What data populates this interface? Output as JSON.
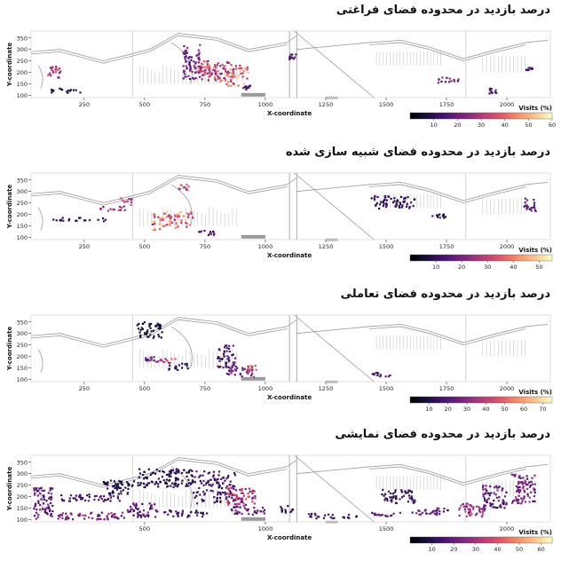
{
  "chart_data": [
    {
      "type": "heatmap",
      "title": "درصد بازدید در محدوده فضای فراغتی",
      "xlabel": "X-coordinate",
      "ylabel": "Y-coordinate",
      "xticks": [
        250,
        500,
        750,
        1000,
        1250,
        1500,
        1750,
        2000
      ],
      "yticks": [
        100,
        150,
        200,
        250,
        300,
        350
      ],
      "xlim": [
        30,
        2180
      ],
      "ylim": [
        90,
        380
      ],
      "colorbar": {
        "label": "Visits (%)",
        "ticks": [
          10,
          20,
          30,
          40,
          50,
          60
        ],
        "range": [
          0,
          60
        ]
      },
      "clusters": [
        {
          "x": [
            95,
            155
          ],
          "y": [
            175,
            230
          ],
          "level": 30
        },
        {
          "x": [
            110,
            235
          ],
          "y": [
            110,
            130
          ],
          "level": 10
        },
        {
          "x": [
            660,
            730
          ],
          "y": [
            170,
            320
          ],
          "level": 20
        },
        {
          "x": [
            720,
            860
          ],
          "y": [
            160,
            250
          ],
          "level": 35
        },
        {
          "x": [
            840,
            930
          ],
          "y": [
            140,
            230
          ],
          "level": 45
        },
        {
          "x": [
            720,
            800
          ],
          "y": [
            190,
            230
          ],
          "level": 30
        },
        {
          "x": [
            900,
            940
          ],
          "y": [
            125,
            145
          ],
          "level": 15
        },
        {
          "x": [
            1100,
            1130
          ],
          "y": [
            255,
            280
          ],
          "level": 15
        },
        {
          "x": [
            1710,
            1800
          ],
          "y": [
            155,
            180
          ],
          "level": 20
        },
        {
          "x": [
            1920,
            1960
          ],
          "y": [
            105,
            130
          ],
          "level": 15
        },
        {
          "x": [
            2080,
            2110
          ],
          "y": [
            205,
            220
          ],
          "level": 15
        }
      ]
    },
    {
      "type": "heatmap",
      "title": "درصد بازدید در محدوده فضای شبیه سازی شده",
      "xlabel": "X-coordinate",
      "ylabel": "Y-coordinate",
      "xticks": [
        250,
        500,
        750,
        1000,
        1250,
        1500,
        1750,
        2000
      ],
      "yticks": [
        100,
        150,
        200,
        250,
        300,
        350
      ],
      "xlim": [
        30,
        2180
      ],
      "ylim": [
        90,
        380
      ],
      "colorbar": {
        "label": "Visits (%)",
        "ticks": [
          10,
          20,
          30,
          40,
          50
        ],
        "range": [
          0,
          55
        ]
      },
      "clusters": [
        {
          "x": [
            120,
            340
          ],
          "y": [
            170,
            185
          ],
          "level": 10
        },
        {
          "x": [
            310,
            420
          ],
          "y": [
            215,
            235
          ],
          "level": 25
        },
        {
          "x": [
            400,
            450
          ],
          "y": [
            240,
            270
          ],
          "level": 30
        },
        {
          "x": [
            530,
            580
          ],
          "y": [
            130,
            210
          ],
          "level": 40
        },
        {
          "x": [
            580,
            700
          ],
          "y": [
            140,
            210
          ],
          "level": 40
        },
        {
          "x": [
            640,
            690
          ],
          "y": [
            300,
            330
          ],
          "level": 35
        },
        {
          "x": [
            720,
            790
          ],
          "y": [
            110,
            130
          ],
          "level": 15
        },
        {
          "x": [
            1440,
            1620
          ],
          "y": [
            225,
            280
          ],
          "level": 10
        },
        {
          "x": [
            1690,
            1760
          ],
          "y": [
            185,
            200
          ],
          "level": 10
        },
        {
          "x": [
            2070,
            2120
          ],
          "y": [
            205,
            275
          ],
          "level": 15
        }
      ]
    },
    {
      "type": "heatmap",
      "title": "درصد بازدید در محدوده فضای تعاملی",
      "xlabel": "X-coordinate",
      "ylabel": "Y-coordinate",
      "xticks": [
        250,
        500,
        750,
        1000,
        1250,
        1500,
        1750,
        2000
      ],
      "yticks": [
        100,
        150,
        200,
        250,
        300,
        350
      ],
      "xlim": [
        30,
        2180
      ],
      "ylim": [
        90,
        380
      ],
      "colorbar": {
        "label": "Visits (%)",
        "ticks": [
          10,
          20,
          30,
          40,
          50,
          60,
          70
        ],
        "range": [
          0,
          75
        ]
      },
      "clusters": [
        {
          "x": [
            470,
            580
          ],
          "y": [
            280,
            350
          ],
          "level": 10
        },
        {
          "x": [
            540,
            640
          ],
          "y": [
            170,
            190
          ],
          "level": 45
        },
        {
          "x": [
            500,
            540
          ],
          "y": [
            180,
            200
          ],
          "level": 25
        },
        {
          "x": [
            600,
            680
          ],
          "y": [
            140,
            170
          ],
          "level": 15
        },
        {
          "x": [
            800,
            880
          ],
          "y": [
            150,
            250
          ],
          "level": 20
        },
        {
          "x": [
            840,
            960
          ],
          "y": [
            110,
            150
          ],
          "level": 30
        },
        {
          "x": [
            920,
            970
          ],
          "y": [
            135,
            160
          ],
          "level": 45
        },
        {
          "x": [
            1440,
            1520
          ],
          "y": [
            110,
            130
          ],
          "level": 20
        }
      ]
    },
    {
      "type": "heatmap",
      "title": "درصد بازدید در محدوده فضای نمایشی",
      "xlabel": "X-coordinate",
      "ylabel": "Y-coordinate",
      "xticks": [
        500,
        1000,
        1500,
        2000
      ],
      "yticks": [
        100,
        150,
        200,
        250,
        300,
        350
      ],
      "xlim": [
        30,
        2180
      ],
      "ylim": [
        90,
        380
      ],
      "colorbar": {
        "label": "Visits (%)",
        "ticks": [
          10,
          20,
          30,
          40,
          50,
          60
        ],
        "range": [
          0,
          65
        ]
      },
      "clusters": [
        {
          "x": [
            40,
            120
          ],
          "y": [
            100,
            240
          ],
          "level": 20
        },
        {
          "x": [
            120,
            420
          ],
          "y": [
            100,
            130
          ],
          "level": 25
        },
        {
          "x": [
            150,
            400
          ],
          "y": [
            180,
            210
          ],
          "level": 15
        },
        {
          "x": [
            330,
            460
          ],
          "y": [
            210,
            270
          ],
          "level": 10
        },
        {
          "x": [
            430,
            560
          ],
          "y": [
            110,
            170
          ],
          "level": 20
        },
        {
          "x": [
            470,
            700
          ],
          "y": [
            240,
            320
          ],
          "level": 10
        },
        {
          "x": [
            580,
            760
          ],
          "y": [
            110,
            140
          ],
          "level": 15
        },
        {
          "x": [
            700,
            880
          ],
          "y": [
            170,
            310
          ],
          "level": 15
        },
        {
          "x": [
            840,
            960
          ],
          "y": [
            160,
            240
          ],
          "level": 35
        },
        {
          "x": [
            860,
            1000
          ],
          "y": [
            120,
            160
          ],
          "level": 20
        },
        {
          "x": [
            1050,
            1120
          ],
          "y": [
            130,
            160
          ],
          "level": 15
        },
        {
          "x": [
            1180,
            1380
          ],
          "y": [
            105,
            125
          ],
          "level": 15
        },
        {
          "x": [
            1440,
            1580
          ],
          "y": [
            110,
            130
          ],
          "level": 20
        },
        {
          "x": [
            1480,
            1620
          ],
          "y": [
            170,
            230
          ],
          "level": 15
        },
        {
          "x": [
            1600,
            1760
          ],
          "y": [
            120,
            150
          ],
          "level": 20
        },
        {
          "x": [
            1800,
            1920
          ],
          "y": [
            110,
            170
          ],
          "level": 30
        },
        {
          "x": [
            1900,
            2000
          ],
          "y": [
            150,
            250
          ],
          "level": 20
        },
        {
          "x": [
            2020,
            2120
          ],
          "y": [
            170,
            300
          ],
          "level": 25
        }
      ]
    }
  ]
}
